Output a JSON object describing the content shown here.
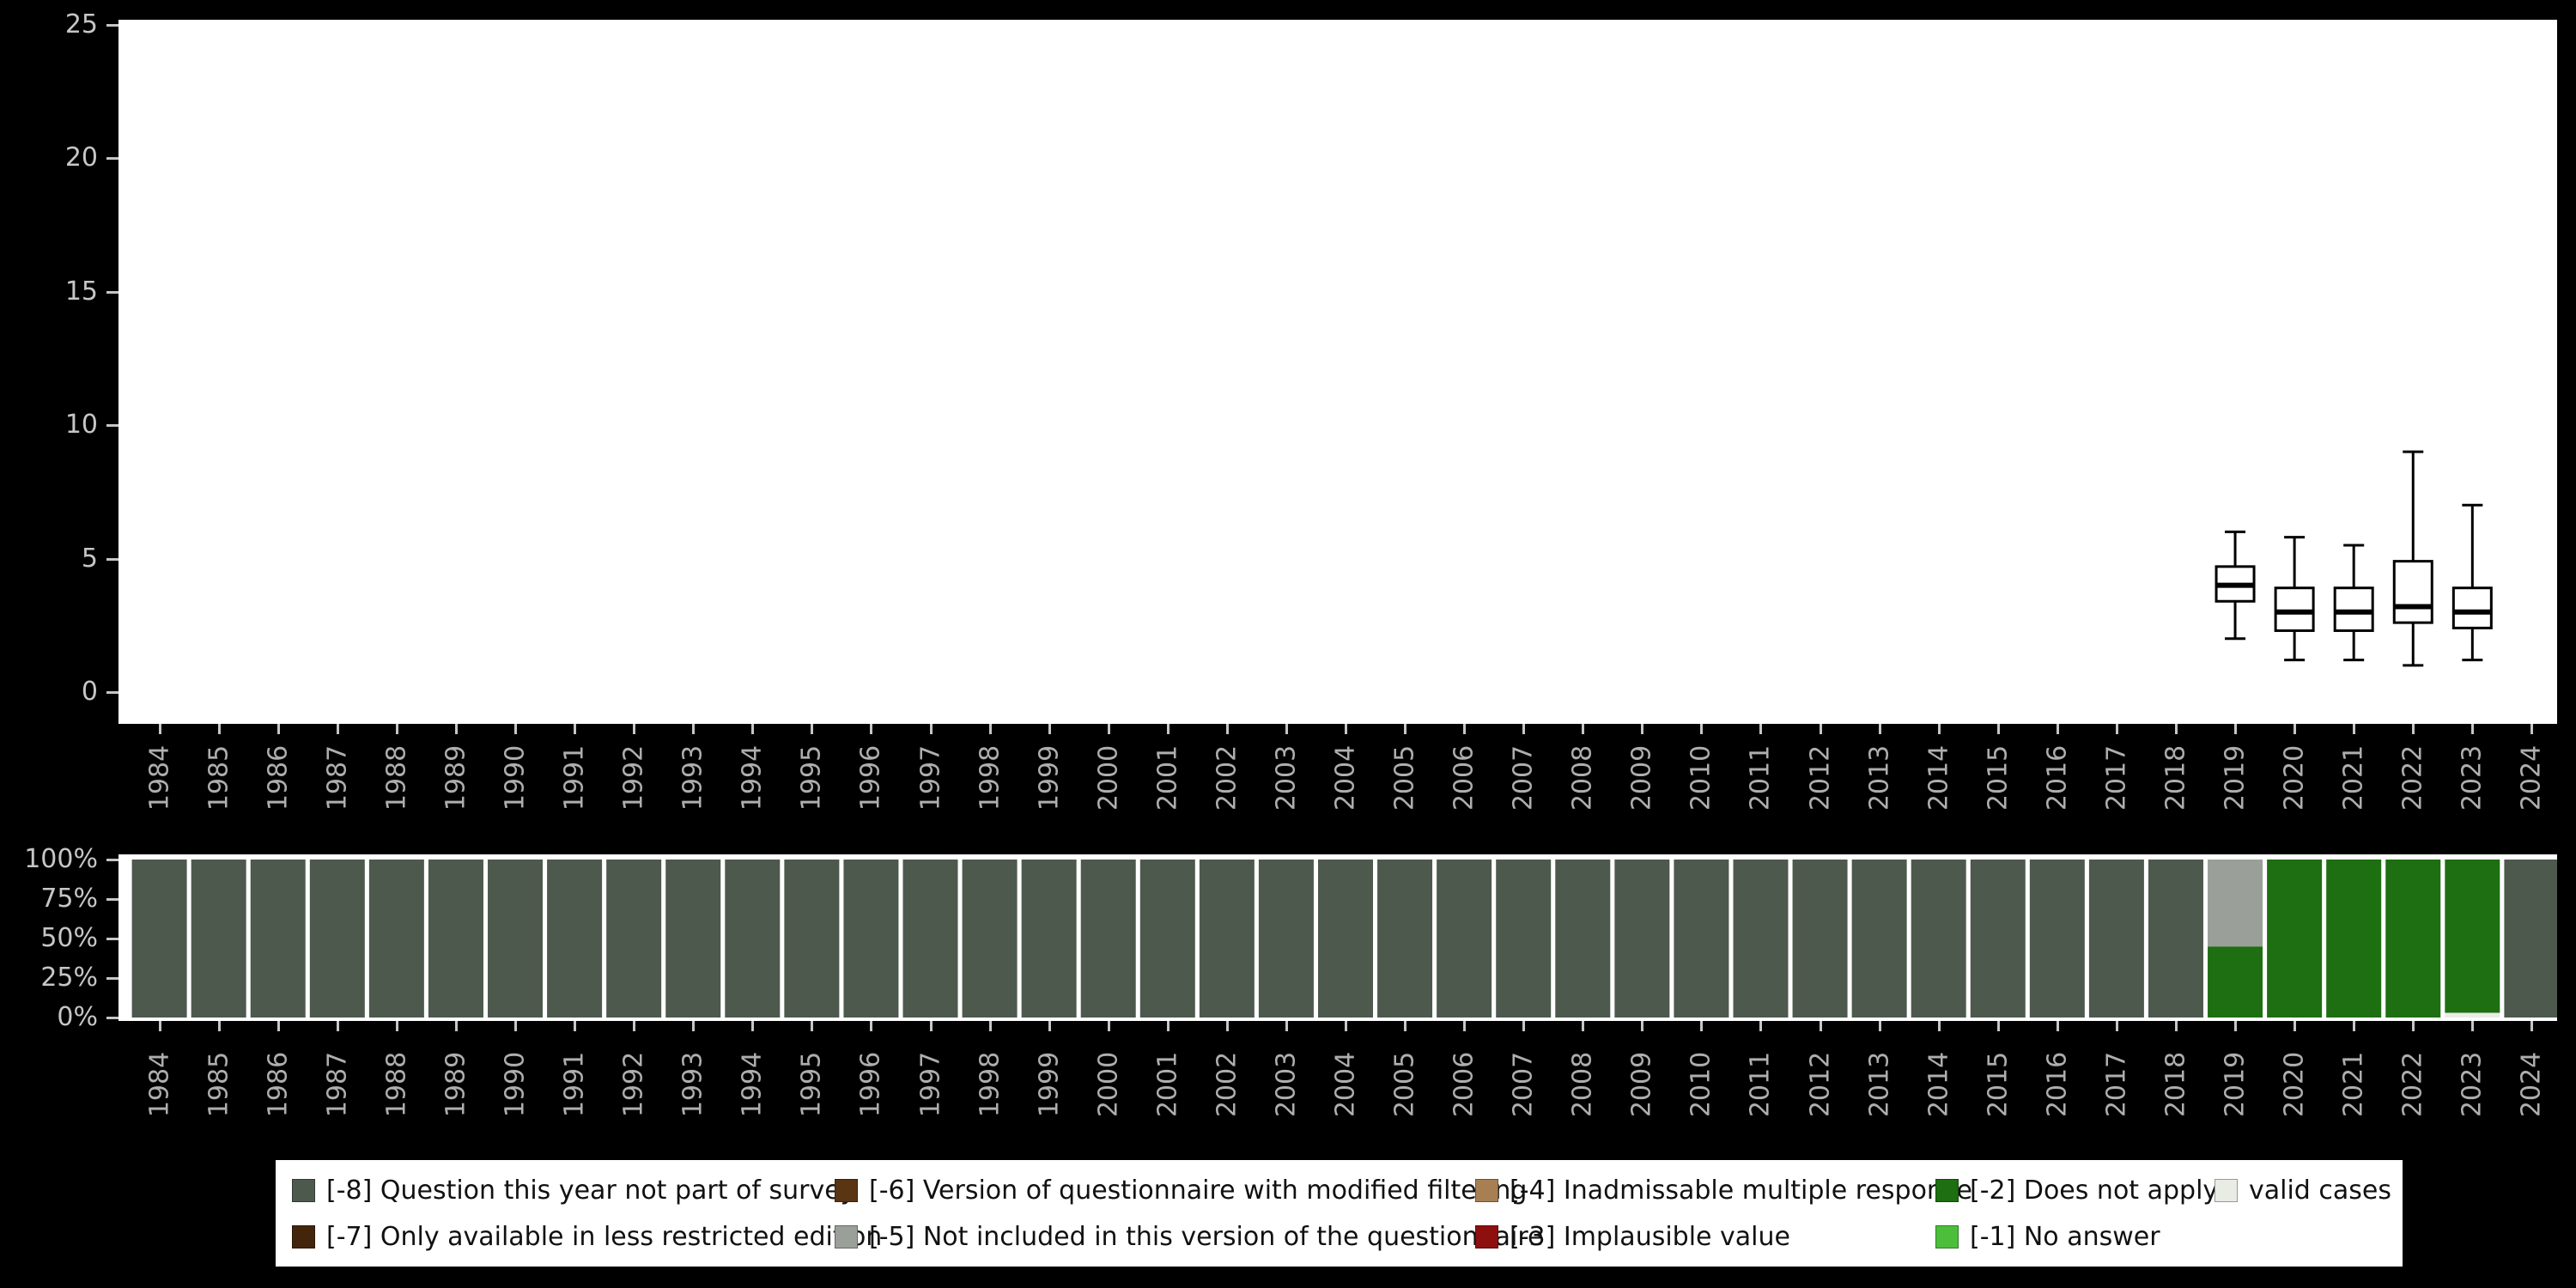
{
  "page": {
    "background": "#000000"
  },
  "years": [
    1984,
    1985,
    1986,
    1987,
    1988,
    1989,
    1990,
    1991,
    1992,
    1993,
    1994,
    1995,
    1996,
    1997,
    1998,
    1999,
    2000,
    2001,
    2002,
    2003,
    2004,
    2005,
    2006,
    2007,
    2008,
    2009,
    2010,
    2011,
    2012,
    2013,
    2014,
    2015,
    2016,
    2017,
    2018,
    2019,
    2020,
    2021,
    2022,
    2023,
    2024
  ],
  "colors": {
    "-8": "#4e594e",
    "-7": "#43250c",
    "-6": "#5a3514",
    "-5": "#9b9f99",
    "-4": "#a87f52",
    "-3": "#8e0f0f",
    "-2": "#1e6e12",
    "-1": "#4cbe3c",
    "valid": "#e9ece5"
  },
  "chart_data": [
    {
      "type": "boxplot",
      "title": "",
      "ylim": [
        0,
        25
      ],
      "yticks": [
        0,
        5,
        10,
        15,
        20,
        25
      ],
      "x": "year",
      "boxes": [
        {
          "year": 2019,
          "whisker_low": 2.0,
          "q1": 3.4,
          "median": 4.0,
          "q3": 4.7,
          "whisker_high": 6.0
        },
        {
          "year": 2020,
          "whisker_low": 1.2,
          "q1": 2.3,
          "median": 3.0,
          "q3": 3.9,
          "whisker_high": 5.8
        },
        {
          "year": 2021,
          "whisker_low": 1.2,
          "q1": 2.3,
          "median": 3.0,
          "q3": 3.9,
          "whisker_high": 5.5
        },
        {
          "year": 2022,
          "whisker_low": 1.0,
          "q1": 2.6,
          "median": 3.2,
          "q3": 4.9,
          "whisker_high": 9.0
        },
        {
          "year": 2023,
          "whisker_low": 1.2,
          "q1": 2.4,
          "median": 3.0,
          "q3": 3.9,
          "whisker_high": 7.0
        }
      ]
    },
    {
      "type": "bar",
      "stacked": true,
      "percent": true,
      "ytick_values": [
        0,
        25,
        50,
        75,
        100
      ],
      "ytick_labels": [
        "0%",
        "25%",
        "50%",
        "75%",
        "100%"
      ],
      "default_segments": [
        {
          "key": "-8",
          "pct": 100
        }
      ],
      "year_segments": {
        "2019": [
          {
            "key": "-2",
            "pct": 45
          },
          {
            "key": "-5",
            "pct": 55
          }
        ],
        "2020": [
          {
            "key": "-2",
            "pct": 100
          }
        ],
        "2021": [
          {
            "key": "-2",
            "pct": 100
          }
        ],
        "2022": [
          {
            "key": "-2",
            "pct": 100
          }
        ],
        "2023": [
          {
            "key": "valid",
            "pct": 3
          },
          {
            "key": "-2",
            "pct": 97
          }
        ]
      }
    }
  ],
  "legend": {
    "entries": [
      {
        "key": "-8",
        "label": "[-8] Question this year not part of survey",
        "col": 0,
        "row": 0
      },
      {
        "key": "-7",
        "label": "[-7] Only available in less restricted edition",
        "col": 0,
        "row": 1
      },
      {
        "key": "-6",
        "label": "[-6] Version of questionnaire with modified filtering",
        "col": 1,
        "row": 0
      },
      {
        "key": "-5",
        "label": "[-5] Not included in this version of the questionnaire",
        "col": 1,
        "row": 1
      },
      {
        "key": "-4",
        "label": "[-4] Inadmissable multiple response",
        "col": 2,
        "row": 0
      },
      {
        "key": "-3",
        "label": "[-3] Implausible value",
        "col": 2,
        "row": 1
      },
      {
        "key": "-2",
        "label": "[-2] Does not apply",
        "col": 3,
        "row": 0
      },
      {
        "key": "-1",
        "label": "[-1] No answer",
        "col": 3,
        "row": 1
      },
      {
        "key": "valid",
        "label": "valid cases",
        "col": 4,
        "row": 0
      }
    ]
  }
}
